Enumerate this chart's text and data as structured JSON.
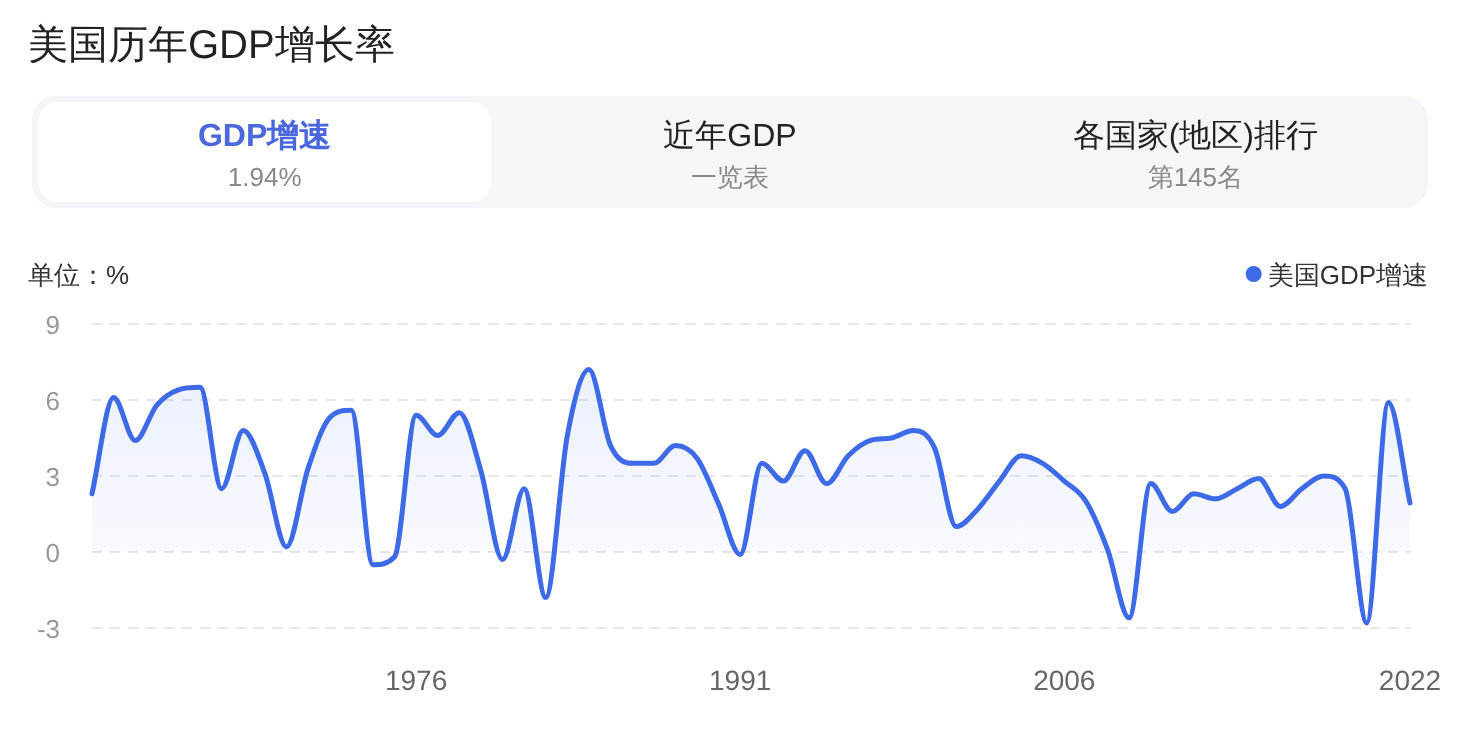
{
  "chart_data": {
    "type": "area",
    "title": "美国历年GDP增长率",
    "ylabel": "单位：%",
    "annotations": [
      "GDP增速",
      "1.94%",
      "近年GDP",
      "一览表",
      "各国家(地区)排行",
      "第145名"
    ],
    "x": [
      1961,
      1962,
      1963,
      1964,
      1965,
      1966,
      1967,
      1968,
      1969,
      1970,
      1971,
      1972,
      1973,
      1974,
      1975,
      1976,
      1977,
      1978,
      1979,
      1980,
      1981,
      1982,
      1983,
      1984,
      1985,
      1986,
      1987,
      1988,
      1989,
      1990,
      1991,
      1992,
      1993,
      1994,
      1995,
      1996,
      1997,
      1998,
      1999,
      2000,
      2001,
      2002,
      2003,
      2004,
      2005,
      2006,
      2007,
      2008,
      2009,
      2010,
      2011,
      2012,
      2013,
      2014,
      2015,
      2016,
      2017,
      2018,
      2019,
      2020,
      2021,
      2022
    ],
    "series": [
      {
        "name": "美国GDP增速",
        "color": "#3d6ae6",
        "values": [
          2.3,
          6.1,
          4.4,
          5.8,
          6.4,
          6.5,
          2.5,
          4.8,
          3.1,
          0.2,
          3.3,
          5.3,
          5.6,
          -0.5,
          -0.2,
          5.4,
          4.6,
          5.5,
          3.2,
          -0.3,
          2.5,
          -1.8,
          4.6,
          7.2,
          4.2,
          3.5,
          3.5,
          4.2,
          3.7,
          1.9,
          -0.1,
          3.5,
          2.8,
          4.0,
          2.7,
          3.8,
          4.4,
          4.5,
          4.8,
          4.1,
          1.0,
          1.7,
          2.8,
          3.8,
          3.5,
          2.8,
          2.0,
          0.1,
          -2.6,
          2.7,
          1.6,
          2.3,
          2.1,
          2.5,
          2.9,
          1.8,
          2.5,
          3.0,
          2.5,
          -2.8,
          5.9,
          1.94
        ]
      }
    ],
    "xlim": [
      1961,
      2022
    ],
    "xticks": [
      1976,
      1991,
      2006,
      2022
    ],
    "ylim": [
      -3,
      9
    ],
    "yticks": [
      -3,
      0,
      3,
      6,
      9
    ],
    "grid": "y",
    "legend": "top right",
    "marker": "none",
    "line_style": "solid"
  }
}
